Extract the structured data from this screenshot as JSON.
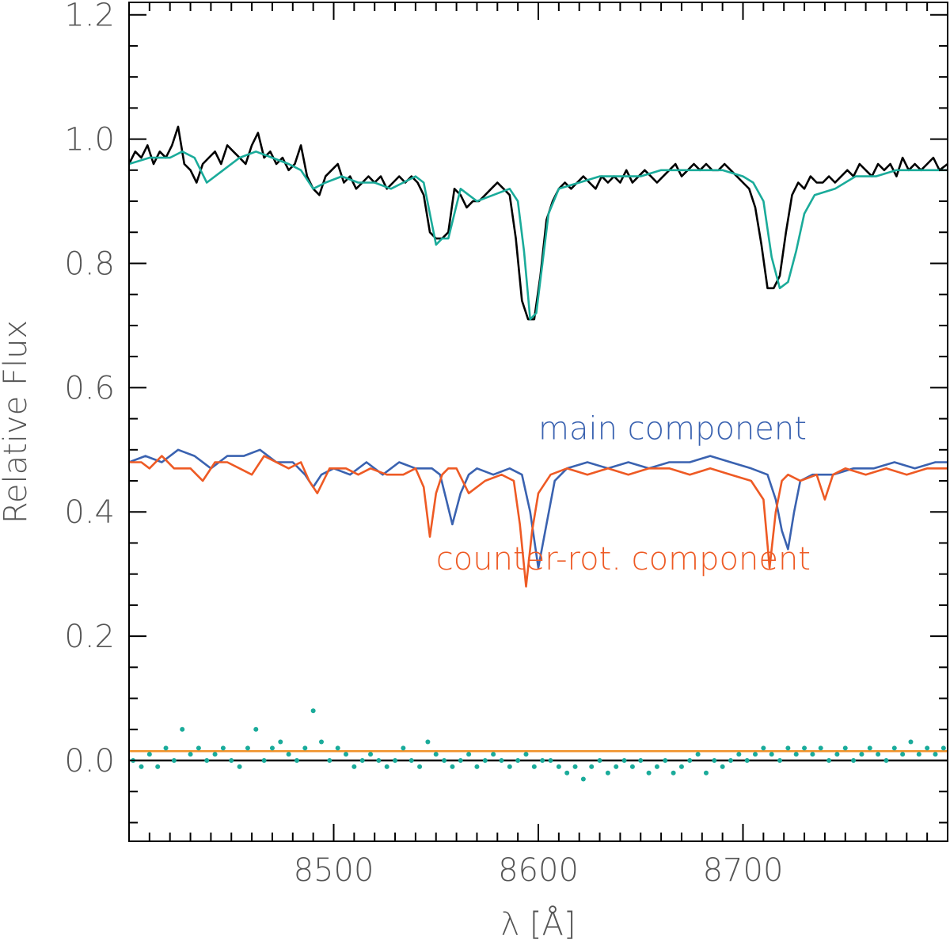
{
  "chart_data": {
    "type": "line",
    "title": "",
    "xlabel": "λ [Å]",
    "ylabel": "Relative Flux",
    "xlim": [
      8400,
      8800
    ],
    "ylim": [
      -0.13,
      1.22
    ],
    "x_ticks": [
      8500,
      8600,
      8700
    ],
    "x_tick_labels": [
      "8500",
      "8600",
      "8700"
    ],
    "y_ticks": [
      0.0,
      0.2,
      0.4,
      0.6,
      0.8,
      1.0,
      1.2
    ],
    "y_tick_labels": [
      "0.0",
      "0.2",
      "0.4",
      "0.6",
      "0.8",
      "1.0",
      "1.2"
    ],
    "grid": false,
    "colors": {
      "observed": "#000000",
      "fit": "#1aab9a",
      "main": "#3a62b0",
      "counter": "#ee5a24",
      "residual": "#1aab9a",
      "offset_line": "#f0922a",
      "zero_line": "#000000"
    },
    "series": [
      {
        "key": "observed",
        "x": [
          8400,
          8403,
          8406,
          8409,
          8412,
          8415,
          8418,
          8421,
          8424,
          8427,
          8430,
          8433,
          8436,
          8439,
          8442,
          8445,
          8448,
          8451,
          8454,
          8457,
          8460,
          8463,
          8466,
          8469,
          8472,
          8475,
          8478,
          8481,
          8484,
          8487,
          8490,
          8493,
          8496,
          8499,
          8502,
          8505,
          8508,
          8511,
          8514,
          8517,
          8520,
          8523,
          8526,
          8529,
          8532,
          8535,
          8538,
          8541,
          8544,
          8547,
          8550,
          8553,
          8556,
          8559,
          8562,
          8565,
          8568,
          8571,
          8574,
          8577,
          8580,
          8583,
          8586,
          8589,
          8592,
          8595,
          8598,
          8601,
          8604,
          8607,
          8610,
          8613,
          8616,
          8619,
          8622,
          8625,
          8628,
          8631,
          8634,
          8637,
          8640,
          8643,
          8646,
          8649,
          8652,
          8655,
          8658,
          8661,
          8664,
          8667,
          8670,
          8673,
          8676,
          8679,
          8682,
          8685,
          8688,
          8691,
          8694,
          8697,
          8700,
          8703,
          8706,
          8709,
          8712,
          8715,
          8718,
          8721,
          8724,
          8727,
          8730,
          8733,
          8736,
          8739,
          8742,
          8745,
          8748,
          8751,
          8754,
          8757,
          8760,
          8763,
          8766,
          8769,
          8772,
          8775,
          8778,
          8781,
          8784,
          8787,
          8790,
          8793,
          8796,
          8800
        ],
        "values": [
          0.96,
          0.98,
          0.97,
          0.99,
          0.96,
          0.98,
          0.97,
          0.99,
          1.02,
          0.96,
          0.95,
          0.93,
          0.96,
          0.97,
          0.98,
          0.96,
          0.99,
          0.98,
          0.97,
          0.96,
          0.99,
          1.01,
          0.97,
          0.98,
          0.96,
          0.97,
          0.95,
          0.96,
          0.99,
          0.94,
          0.92,
          0.91,
          0.94,
          0.95,
          0.96,
          0.93,
          0.94,
          0.92,
          0.93,
          0.94,
          0.93,
          0.94,
          0.92,
          0.93,
          0.94,
          0.93,
          0.94,
          0.93,
          0.91,
          0.85,
          0.84,
          0.84,
          0.85,
          0.92,
          0.91,
          0.89,
          0.9,
          0.9,
          0.91,
          0.92,
          0.93,
          0.92,
          0.91,
          0.84,
          0.74,
          0.71,
          0.71,
          0.78,
          0.87,
          0.9,
          0.92,
          0.93,
          0.92,
          0.93,
          0.94,
          0.93,
          0.92,
          0.94,
          0.93,
          0.94,
          0.93,
          0.95,
          0.93,
          0.94,
          0.95,
          0.94,
          0.93,
          0.94,
          0.95,
          0.96,
          0.94,
          0.95,
          0.96,
          0.95,
          0.96,
          0.95,
          0.95,
          0.96,
          0.95,
          0.94,
          0.93,
          0.92,
          0.89,
          0.83,
          0.76,
          0.76,
          0.78,
          0.85,
          0.91,
          0.93,
          0.92,
          0.94,
          0.93,
          0.93,
          0.94,
          0.93,
          0.94,
          0.95,
          0.94,
          0.96,
          0.95,
          0.94,
          0.96,
          0.95,
          0.96,
          0.94,
          0.97,
          0.95,
          0.96,
          0.95,
          0.96,
          0.97,
          0.95,
          0.96
        ]
      },
      {
        "key": "fit",
        "x": [
          8400,
          8410,
          8420,
          8426,
          8432,
          8438,
          8446,
          8454,
          8462,
          8470,
          8478,
          8484,
          8490,
          8496,
          8504,
          8512,
          8520,
          8528,
          8534,
          8540,
          8544,
          8547,
          8550,
          8553,
          8556,
          8559,
          8562,
          8570,
          8578,
          8586,
          8590,
          8593,
          8596,
          8599,
          8602,
          8605,
          8610,
          8620,
          8630,
          8640,
          8650,
          8660,
          8670,
          8680,
          8690,
          8700,
          8705,
          8710,
          8714,
          8718,
          8722,
          8726,
          8730,
          8735,
          8745,
          8755,
          8765,
          8775,
          8785,
          8800
        ],
        "values": [
          0.96,
          0.97,
          0.97,
          0.98,
          0.97,
          0.93,
          0.95,
          0.97,
          0.98,
          0.97,
          0.96,
          0.95,
          0.92,
          0.93,
          0.94,
          0.93,
          0.93,
          0.92,
          0.93,
          0.94,
          0.93,
          0.88,
          0.83,
          0.84,
          0.84,
          0.88,
          0.92,
          0.9,
          0.91,
          0.92,
          0.9,
          0.82,
          0.71,
          0.72,
          0.8,
          0.88,
          0.92,
          0.93,
          0.94,
          0.94,
          0.94,
          0.95,
          0.95,
          0.95,
          0.95,
          0.94,
          0.93,
          0.9,
          0.81,
          0.76,
          0.77,
          0.82,
          0.88,
          0.91,
          0.92,
          0.94,
          0.94,
          0.95,
          0.95,
          0.95
        ]
      },
      {
        "key": "main",
        "x": [
          8400,
          8408,
          8416,
          8424,
          8432,
          8440,
          8448,
          8456,
          8464,
          8472,
          8480,
          8486,
          8490,
          8494,
          8500,
          8508,
          8516,
          8524,
          8532,
          8540,
          8548,
          8552,
          8555,
          8558,
          8562,
          8566,
          8570,
          8578,
          8586,
          8592,
          8596,
          8600,
          8604,
          8608,
          8614,
          8624,
          8634,
          8644,
          8654,
          8664,
          8674,
          8684,
          8694,
          8704,
          8712,
          8716,
          8719,
          8722,
          8725,
          8728,
          8734,
          8744,
          8754,
          8764,
          8774,
          8784,
          8794,
          8800
        ],
        "values": [
          0.48,
          0.49,
          0.48,
          0.5,
          0.49,
          0.47,
          0.49,
          0.49,
          0.5,
          0.48,
          0.48,
          0.46,
          0.44,
          0.46,
          0.47,
          0.46,
          0.48,
          0.46,
          0.48,
          0.47,
          0.47,
          0.46,
          0.42,
          0.38,
          0.43,
          0.46,
          0.47,
          0.46,
          0.47,
          0.46,
          0.4,
          0.31,
          0.38,
          0.45,
          0.47,
          0.48,
          0.47,
          0.48,
          0.47,
          0.48,
          0.48,
          0.49,
          0.48,
          0.47,
          0.46,
          0.42,
          0.37,
          0.34,
          0.4,
          0.45,
          0.46,
          0.46,
          0.47,
          0.47,
          0.48,
          0.47,
          0.48,
          0.48
        ]
      },
      {
        "key": "counter",
        "x": [
          8400,
          8406,
          8410,
          8416,
          8422,
          8430,
          8436,
          8442,
          8448,
          8454,
          8460,
          8466,
          8472,
          8478,
          8484,
          8488,
          8492,
          8498,
          8506,
          8512,
          8518,
          8526,
          8534,
          8540,
          8544,
          8547,
          8550,
          8553,
          8556,
          8560,
          8566,
          8574,
          8582,
          8588,
          8591,
          8594,
          8597,
          8600,
          8606,
          8614,
          8624,
          8634,
          8644,
          8654,
          8664,
          8674,
          8684,
          8694,
          8704,
          8710,
          8713,
          8716,
          8719,
          8722,
          8728,
          8736,
          8740,
          8744,
          8750,
          8760,
          8770,
          8780,
          8790,
          8800
        ],
        "values": [
          0.48,
          0.48,
          0.47,
          0.49,
          0.47,
          0.47,
          0.45,
          0.48,
          0.48,
          0.47,
          0.46,
          0.49,
          0.48,
          0.47,
          0.48,
          0.45,
          0.43,
          0.47,
          0.47,
          0.46,
          0.47,
          0.46,
          0.46,
          0.47,
          0.44,
          0.36,
          0.43,
          0.46,
          0.47,
          0.47,
          0.43,
          0.45,
          0.46,
          0.45,
          0.38,
          0.28,
          0.37,
          0.43,
          0.46,
          0.47,
          0.46,
          0.47,
          0.46,
          0.47,
          0.47,
          0.46,
          0.47,
          0.46,
          0.45,
          0.42,
          0.31,
          0.4,
          0.45,
          0.46,
          0.45,
          0.46,
          0.42,
          0.46,
          0.47,
          0.46,
          0.47,
          0.46,
          0.47,
          0.47
        ]
      }
    ],
    "residuals": {
      "x": [
        8402,
        8406,
        8410,
        8414,
        8418,
        8422,
        8426,
        8430,
        8434,
        8438,
        8442,
        8446,
        8450,
        8454,
        8458,
        8462,
        8466,
        8470,
        8474,
        8478,
        8482,
        8486,
        8490,
        8494,
        8498,
        8502,
        8506,
        8510,
        8514,
        8518,
        8522,
        8526,
        8530,
        8534,
        8538,
        8542,
        8546,
        8550,
        8554,
        8558,
        8562,
        8566,
        8570,
        8574,
        8578,
        8582,
        8586,
        8590,
        8594,
        8598,
        8602,
        8606,
        8610,
        8614,
        8618,
        8622,
        8626,
        8630,
        8634,
        8638,
        8642,
        8646,
        8650,
        8654,
        8658,
        8662,
        8666,
        8670,
        8674,
        8678,
        8682,
        8686,
        8690,
        8694,
        8698,
        8702,
        8706,
        8710,
        8714,
        8718,
        8722,
        8726,
        8730,
        8734,
        8738,
        8742,
        8746,
        8750,
        8754,
        8758,
        8762,
        8766,
        8770,
        8774,
        8778,
        8782,
        8786,
        8790,
        8794,
        8798
      ],
      "values": [
        0.0,
        -0.01,
        0.01,
        -0.01,
        0.02,
        0.0,
        0.05,
        0.01,
        0.02,
        0.0,
        0.01,
        0.02,
        0.0,
        -0.01,
        0.02,
        0.05,
        0.0,
        0.02,
        0.03,
        0.01,
        0.0,
        0.02,
        0.08,
        0.03,
        0.0,
        0.02,
        0.01,
        -0.01,
        0.0,
        0.01,
        0.0,
        -0.01,
        0.0,
        0.02,
        0.0,
        -0.01,
        0.03,
        0.01,
        0.0,
        -0.01,
        0.0,
        0.01,
        -0.01,
        0.0,
        0.01,
        0.0,
        -0.01,
        0.0,
        0.01,
        -0.01,
        0.0,
        0.0,
        -0.01,
        -0.02,
        -0.01,
        -0.03,
        -0.01,
        0.0,
        -0.02,
        -0.01,
        0.0,
        -0.01,
        0.0,
        -0.02,
        -0.01,
        0.0,
        -0.02,
        -0.01,
        0.0,
        0.01,
        -0.02,
        0.0,
        -0.01,
        0.0,
        0.01,
        0.0,
        0.01,
        0.02,
        0.01,
        0.0,
        0.02,
        0.01,
        0.02,
        0.01,
        0.02,
        0.0,
        0.01,
        0.02,
        0.0,
        0.01,
        0.02,
        0.01,
        0.0,
        0.02,
        0.01,
        0.03,
        0.01,
        0.02,
        0.01,
        0.02
      ]
    },
    "offset_line_y": 0.015,
    "zero_line_y": 0.0,
    "annotations": [
      {
        "text": "main component",
        "x": 8600,
        "y": 0.535,
        "color": "#3a62b0"
      },
      {
        "text": "counter-rot. component",
        "x": 8550,
        "y": 0.325,
        "color": "#ee5a24"
      }
    ]
  }
}
